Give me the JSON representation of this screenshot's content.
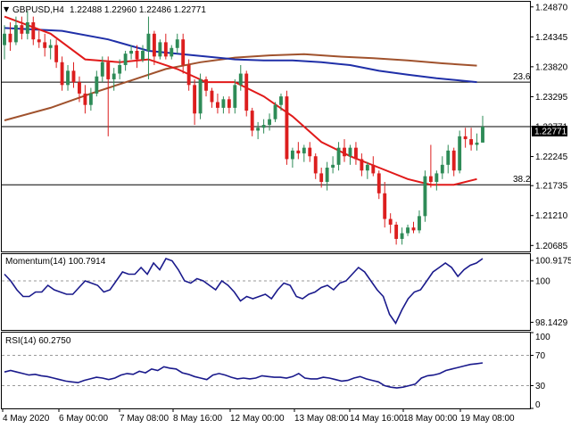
{
  "header": {
    "symbol_label": "GBPUSD,H4",
    "ohlc": "1.22488 1.22960 1.22486 1.22771"
  },
  "colors": {
    "bull": "#2e8b57",
    "bear": "#dc1e1e",
    "ema_red": "#e11a1a",
    "sma_blue": "#1f2fa8",
    "sma_brown": "#a0522d",
    "indicator_line": "#1a1a8c",
    "grid": "#000000"
  },
  "price_axis": {
    "ticks": [
      "1.24870",
      "1.24345",
      "1.23820",
      "1.23295",
      "1.22771",
      "1.22245",
      "1.21735",
      "1.21210",
      "1.20685"
    ],
    "current_price": "1.22771",
    "ylim": [
      1.2058,
      1.2496
    ]
  },
  "fib_levels": [
    {
      "label": "23.6",
      "value": 1.2355
    },
    {
      "label": "38.2",
      "value": 1.2175
    }
  ],
  "momentum": {
    "label": "Momentum(14) 100.7914",
    "ticks": [
      "100.9175",
      "100",
      "98.1429"
    ],
    "ylim": [
      97.8,
      101.2
    ],
    "reference": 100
  },
  "rsi": {
    "label": "RSI(14) 60.2750",
    "ticks": [
      "100",
      "70",
      "30",
      "0"
    ],
    "ylim": [
      0,
      100
    ],
    "levels": [
      70,
      30
    ]
  },
  "time_axis": [
    "4 May 2020",
    "6 May 00:00",
    "7 May 08:00",
    "8 May 16:00",
    "12 May 00:00",
    "13 May 08:00",
    "14 May 16:00",
    "18 May 00:00",
    "19 May 08:00"
  ],
  "chart_data": {
    "type": "candlestick",
    "candles": [
      [
        1.242,
        1.2455,
        1.2395,
        1.244
      ],
      [
        1.244,
        1.246,
        1.241,
        1.2425
      ],
      [
        1.2425,
        1.247,
        1.242,
        1.2455
      ],
      [
        1.2455,
        1.247,
        1.243,
        1.244
      ],
      [
        1.244,
        1.248,
        1.243,
        1.246
      ],
      [
        1.246,
        1.247,
        1.242,
        1.243
      ],
      [
        1.243,
        1.2445,
        1.2415,
        1.2425
      ],
      [
        1.2425,
        1.244,
        1.24,
        1.2415
      ],
      [
        1.2415,
        1.243,
        1.2395,
        1.242
      ],
      [
        1.242,
        1.243,
        1.238,
        1.239
      ],
      [
        1.239,
        1.24,
        1.234,
        1.235
      ],
      [
        1.235,
        1.2385,
        1.234,
        1.2375
      ],
      [
        1.2375,
        1.239,
        1.2345,
        1.2355
      ],
      [
        1.2355,
        1.2365,
        1.232,
        1.2335
      ],
      [
        1.2335,
        1.235,
        1.23,
        1.2315
      ],
      [
        1.2315,
        1.2345,
        1.2305,
        1.2335
      ],
      [
        1.2335,
        1.2375,
        1.233,
        1.2365
      ],
      [
        1.2365,
        1.24,
        1.2355,
        1.239
      ],
      [
        1.239,
        1.24,
        1.226,
        1.236
      ],
      [
        1.236,
        1.238,
        1.234,
        1.237
      ],
      [
        1.237,
        1.2395,
        1.236,
        1.2385
      ],
      [
        1.2385,
        1.241,
        1.2375,
        1.2405
      ],
      [
        1.2405,
        1.242,
        1.2395,
        1.241
      ],
      [
        1.241,
        1.242,
        1.238,
        1.2395
      ],
      [
        1.2395,
        1.242,
        1.239,
        1.241
      ],
      [
        1.241,
        1.247,
        1.236,
        1.244
      ],
      [
        1.244,
        1.2445,
        1.2385,
        1.24
      ],
      [
        1.24,
        1.243,
        1.2395,
        1.2425
      ],
      [
        1.2425,
        1.244,
        1.2395,
        1.24
      ],
      [
        1.24,
        1.242,
        1.2395,
        1.2415
      ],
      [
        1.2415,
        1.244,
        1.2405,
        1.243
      ],
      [
        1.243,
        1.244,
        1.237,
        1.2385
      ],
      [
        1.2385,
        1.2395,
        1.234,
        1.235
      ],
      [
        1.235,
        1.236,
        1.228,
        1.23
      ],
      [
        1.23,
        1.237,
        1.229,
        1.236
      ],
      [
        1.236,
        1.2365,
        1.233,
        1.234
      ],
      [
        1.234,
        1.2345,
        1.231,
        1.232
      ],
      [
        1.232,
        1.2335,
        1.23,
        1.231
      ],
      [
        1.231,
        1.233,
        1.23,
        1.2325
      ],
      [
        1.2325,
        1.233,
        1.23,
        1.231
      ],
      [
        1.231,
        1.236,
        1.23,
        1.235
      ],
      [
        1.235,
        1.2385,
        1.234,
        1.237
      ],
      [
        1.237,
        1.2375,
        1.2295,
        1.2305
      ],
      [
        1.2305,
        1.231,
        1.226,
        1.227
      ],
      [
        1.227,
        1.2285,
        1.2255,
        1.2275
      ],
      [
        1.2275,
        1.229,
        1.2265,
        1.228
      ],
      [
        1.228,
        1.23,
        1.227,
        1.229
      ],
      [
        1.229,
        1.232,
        1.2285,
        1.2315
      ],
      [
        1.2315,
        1.2335,
        1.2305,
        1.233
      ],
      [
        1.233,
        1.234,
        1.221,
        1.222
      ],
      [
        1.222,
        1.224,
        1.2205,
        1.2235
      ],
      [
        1.2235,
        1.225,
        1.222,
        1.223
      ],
      [
        1.223,
        1.2245,
        1.2215,
        1.224
      ],
      [
        1.224,
        1.225,
        1.2215,
        1.2225
      ],
      [
        1.2225,
        1.223,
        1.2185,
        1.2195
      ],
      [
        1.2195,
        1.2205,
        1.217,
        1.218
      ],
      [
        1.218,
        1.2215,
        1.2165,
        1.2205
      ],
      [
        1.2205,
        1.2225,
        1.2195,
        1.221
      ],
      [
        1.221,
        1.225,
        1.22,
        1.224
      ],
      [
        1.224,
        1.2255,
        1.2215,
        1.2225
      ],
      [
        1.2225,
        1.2245,
        1.221,
        1.224
      ],
      [
        1.224,
        1.225,
        1.221,
        1.222
      ],
      [
        1.222,
        1.223,
        1.219,
        1.22
      ],
      [
        1.22,
        1.2215,
        1.2185,
        1.221
      ],
      [
        1.221,
        1.2225,
        1.219,
        1.2195
      ],
      [
        1.2195,
        1.22,
        1.215,
        1.216
      ],
      [
        1.216,
        1.218,
        1.21,
        1.2115
      ],
      [
        1.2115,
        1.2125,
        1.209,
        1.2105
      ],
      [
        1.2105,
        1.211,
        1.207,
        1.208
      ],
      [
        1.208,
        1.21,
        1.207,
        1.209
      ],
      [
        1.209,
        1.2105,
        1.2085,
        1.21
      ],
      [
        1.21,
        1.211,
        1.209,
        1.2095
      ],
      [
        1.2095,
        1.213,
        1.209,
        1.212
      ],
      [
        1.212,
        1.22,
        1.211,
        1.219
      ],
      [
        1.219,
        1.2245,
        1.217,
        1.218
      ],
      [
        1.218,
        1.22,
        1.2165,
        1.2195
      ],
      [
        1.2195,
        1.2225,
        1.2185,
        1.221
      ],
      [
        1.221,
        1.2245,
        1.2195,
        1.2235
      ],
      [
        1.2235,
        1.224,
        1.219,
        1.22
      ],
      [
        1.22,
        1.227,
        1.2195,
        1.226
      ],
      [
        1.226,
        1.2275,
        1.224,
        1.2255
      ],
      [
        1.2255,
        1.2275,
        1.2235,
        1.2245
      ],
      [
        1.2245,
        1.2265,
        1.2235,
        1.2249
      ],
      [
        1.2249,
        1.2296,
        1.2249,
        1.2277
      ]
    ],
    "ema_red": [
      [
        0,
        1.247
      ],
      [
        8,
        1.244
      ],
      [
        14,
        1.2395
      ],
      [
        20,
        1.239
      ],
      [
        25,
        1.2395
      ],
      [
        30,
        1.2378
      ],
      [
        35,
        1.2355
      ],
      [
        40,
        1.2355
      ],
      [
        45,
        1.233
      ],
      [
        50,
        1.2295
      ],
      [
        55,
        1.225
      ],
      [
        60,
        1.2225
      ],
      [
        65,
        1.2205
      ],
      [
        70,
        1.2185
      ],
      [
        74,
        1.2175
      ],
      [
        78,
        1.2175
      ],
      [
        82,
        1.2185
      ]
    ],
    "sma_blue": [
      [
        0,
        1.245
      ],
      [
        10,
        1.2445
      ],
      [
        18,
        1.243
      ],
      [
        25,
        1.241
      ],
      [
        30,
        1.2405
      ],
      [
        35,
        1.24
      ],
      [
        40,
        1.2395
      ],
      [
        45,
        1.2393
      ],
      [
        50,
        1.2393
      ],
      [
        55,
        1.239
      ],
      [
        60,
        1.2385
      ],
      [
        65,
        1.2375
      ],
      [
        70,
        1.2368
      ],
      [
        75,
        1.2362
      ],
      [
        82,
        1.2355
      ]
    ],
    "sma_brown": [
      [
        0,
        1.2288
      ],
      [
        8,
        1.231
      ],
      [
        15,
        1.2335
      ],
      [
        22,
        1.2358
      ],
      [
        28,
        1.2378
      ],
      [
        34,
        1.239
      ],
      [
        40,
        1.2398
      ],
      [
        46,
        1.2402
      ],
      [
        52,
        1.2404
      ],
      [
        58,
        1.24
      ],
      [
        64,
        1.2397
      ],
      [
        70,
        1.2393
      ],
      [
        76,
        1.2388
      ],
      [
        82,
        1.2384
      ]
    ],
    "momentum": [
      100.3,
      100.0,
      99.6,
      99.3,
      99.3,
      99.5,
      99.5,
      99.8,
      99.6,
      99.5,
      99.4,
      99.4,
      99.7,
      100.0,
      99.9,
      99.8,
      99.5,
      99.6,
      100.0,
      100.4,
      100.3,
      100.3,
      100.6,
      100.3,
      100.8,
      100.5,
      101.0,
      100.9,
      100.5,
      100.0,
      99.9,
      100.1,
      100.0,
      99.8,
      99.6,
      100.0,
      99.8,
      99.5,
      99.1,
      99.3,
      99.2,
      99.3,
      99.4,
      99.2,
      99.6,
      99.9,
      99.8,
      99.3,
      99.2,
      99.4,
      99.5,
      99.7,
      99.8,
      99.6,
      99.9,
      100.0,
      100.3,
      100.6,
      100.4,
      100.0,
      99.6,
      99.3,
      98.5,
      98.1,
      98.7,
      99.2,
      99.5,
      99.6,
      100.0,
      100.4,
      100.6,
      100.8,
      100.6,
      100.2,
      100.5,
      100.7,
      100.8,
      101.0
    ],
    "rsi": [
      48,
      50,
      48,
      46,
      44,
      45,
      43,
      42,
      40,
      38,
      36,
      35,
      34,
      37,
      39,
      41,
      40,
      38,
      40,
      44,
      46,
      45,
      49,
      47,
      52,
      50,
      55,
      53,
      52,
      47,
      45,
      42,
      40,
      38,
      44,
      46,
      44,
      41,
      39,
      40,
      39,
      40,
      43,
      42,
      41,
      41,
      40,
      42,
      46,
      40,
      39,
      39,
      41,
      40,
      38,
      36,
      37,
      40,
      42,
      39,
      37,
      35,
      30,
      28,
      27,
      28,
      30,
      32,
      40,
      43,
      44,
      46,
      50,
      52,
      54,
      56,
      58,
      59,
      60
    ]
  }
}
